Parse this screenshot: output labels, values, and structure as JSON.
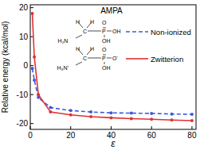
{
  "chart_data": {
    "type": "line",
    "title": "AMPA",
    "x_label": "ε",
    "y_label": "Relative energy (kcal/mol)",
    "xlim": [
      0,
      82
    ],
    "xticks": [
      0,
      20,
      40,
      60,
      80
    ],
    "ylim": [
      -22,
      21
    ],
    "yticks": [
      20,
      10,
      0,
      -10,
      -20
    ],
    "legend": "upper right",
    "grid": false,
    "series": [
      {
        "name": "Non-ionized",
        "color": "#3b5bdb",
        "line_style": "dashed",
        "marker": "circle",
        "x": [
          1,
          2,
          4,
          10,
          20,
          30,
          40,
          50,
          60,
          70,
          80
        ],
        "values": [
          -1,
          -5,
          -11,
          -14.5,
          -15.5,
          -16,
          -16.3,
          -16.4,
          -16.5,
          -16.7,
          -16.8
        ]
      },
      {
        "name": "Zwitterion",
        "color": "#e03131",
        "line_style": "solid",
        "marker": "circle",
        "x": [
          1,
          2,
          4,
          10,
          20,
          30,
          40,
          50,
          60,
          70,
          80
        ],
        "values": [
          18,
          3,
          -10,
          -16,
          -17,
          -17.6,
          -18,
          -18.3,
          -18.5,
          -18.8,
          -19
        ]
      }
    ],
    "structures": [
      [
        "H",
        "H",
        "C",
        "P",
        "O",
        "OH",
        "OH",
        "H₂N"
      ],
      [
        "H",
        "H",
        "C",
        "P",
        "O",
        "O⁻",
        "OH",
        "H₃N⁺"
      ]
    ]
  }
}
